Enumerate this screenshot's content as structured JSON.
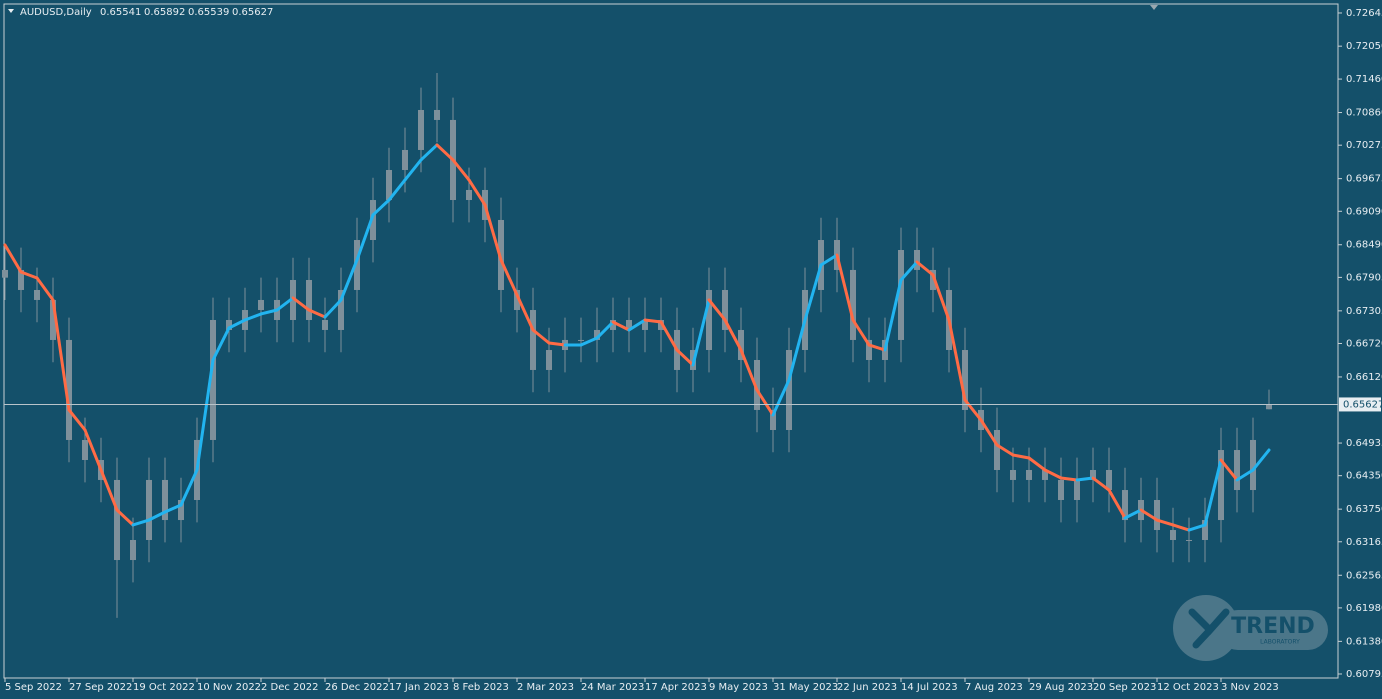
{
  "chart_data": {
    "type": "candlestick",
    "symbol": "AUDUSD,Daily",
    "categories": [
      "5 Sep 2022",
      null,
      null,
      null,
      "27 Sep 2022",
      null,
      null,
      null,
      "19 Oct 2022",
      null,
      null,
      null,
      "10 Nov 2022",
      null,
      null,
      null,
      "2 Dec 2022",
      null,
      null,
      null,
      "26 Dec 2022",
      null,
      null,
      null,
      "17 Jan 2023",
      null,
      null,
      null,
      "8 Feb 2023",
      null,
      null,
      null,
      "2 Mar 2023",
      null,
      null,
      null,
      "24 Mar 2023",
      null,
      null,
      null,
      "17 Apr 2023",
      null,
      null,
      null,
      "9 May 2023",
      null,
      null,
      null,
      "31 May 2023",
      null,
      null,
      null,
      "22 Jun 2023",
      null,
      null,
      null,
      "14 Jul 2023",
      null,
      null,
      null,
      "7 Aug 2023",
      null,
      null,
      null,
      "29 Aug 2023",
      null,
      null,
      null,
      "20 Sep 2023",
      null,
      null,
      null,
      "12 Oct 2023",
      null,
      null,
      null,
      "3 Nov 2023",
      null,
      null,
      null
    ],
    "open": [
      0.679,
      0.68038,
      0.67679,
      0.675,
      0.66783,
      0.6499,
      0.64631,
      0.64273,
      0.62838,
      0.63197,
      0.64273,
      0.63555,
      0.63914,
      0.6499,
      0.67141,
      0.66962,
      0.6732,
      0.675,
      0.67141,
      0.67858,
      0.67141,
      0.66962,
      0.67679,
      0.68575,
      0.69292,
      0.6983,
      0.70189,
      0.70906,
      0.70727,
      0.69292,
      0.69472,
      0.68934,
      0.67679,
      0.6732,
      0.66245,
      0.66603,
      0.66783,
      0.66783,
      0.66962,
      0.67141,
      0.66962,
      0.67141,
      0.66962,
      0.66245,
      0.66603,
      0.67679,
      0.66962,
      0.66424,
      0.65528,
      0.65169,
      0.66603,
      0.67679,
      0.68575,
      0.68038,
      0.66783,
      0.66424,
      0.66783,
      0.68396,
      0.68038,
      0.67679,
      0.66603,
      0.65528,
      0.65169,
      0.64452,
      0.64273,
      0.64452,
      0.64273,
      0.63914,
      0.64273,
      0.64452,
      0.64093,
      0.63555,
      0.63914,
      0.63376,
      0.63197,
      0.63197,
      0.63555,
      0.6481,
      0.64093,
      0.65541
    ],
    "high": [
      0.68438,
      0.68438,
      0.68079,
      0.679,
      0.67183,
      0.6539,
      0.65031,
      0.64673,
      0.63597,
      0.64673,
      0.64673,
      0.64314,
      0.6539,
      0.67541,
      0.67541,
      0.6772,
      0.679,
      0.679,
      0.68258,
      0.68258,
      0.67541,
      0.68079,
      0.68975,
      0.69692,
      0.7023,
      0.70589,
      0.71306,
      0.7157,
      0.71127,
      0.69872,
      0.69872,
      0.69334,
      0.68079,
      0.6772,
      0.67003,
      0.67183,
      0.67183,
      0.67362,
      0.67541,
      0.67541,
      0.67541,
      0.67541,
      0.67362,
      0.67003,
      0.68079,
      0.68079,
      0.67362,
      0.66824,
      0.65928,
      0.67003,
      0.68079,
      0.68975,
      0.68975,
      0.68438,
      0.67183,
      0.67183,
      0.68796,
      0.68796,
      0.68438,
      0.68079,
      0.67003,
      0.65928,
      0.65569,
      0.64852,
      0.64852,
      0.64852,
      0.64673,
      0.64673,
      0.64852,
      0.64852,
      0.64493,
      0.64314,
      0.64314,
      0.63776,
      0.63597,
      0.63955,
      0.6521,
      0.6521,
      0.6539,
      0.65892
    ],
    "low": [
      0.675,
      0.67279,
      0.671,
      0.66383,
      0.6459,
      0.64231,
      0.63873,
      0.618,
      0.62438,
      0.62797,
      0.63155,
      0.63155,
      0.63514,
      0.6459,
      0.66562,
      0.66562,
      0.6692,
      0.66741,
      0.66741,
      0.66741,
      0.66562,
      0.66562,
      0.67279,
      0.68175,
      0.68892,
      0.6943,
      0.69789,
      0.70327,
      0.68892,
      0.68892,
      0.68534,
      0.67279,
      0.6692,
      0.65845,
      0.65845,
      0.66203,
      0.66383,
      0.66383,
      0.66562,
      0.66562,
      0.66562,
      0.66562,
      0.65845,
      0.65845,
      0.66203,
      0.66562,
      0.66024,
      0.65128,
      0.64769,
      0.64769,
      0.66203,
      0.67279,
      0.67638,
      0.66383,
      0.66024,
      0.66024,
      0.66383,
      0.67638,
      0.67279,
      0.66203,
      0.65128,
      0.64769,
      0.64052,
      0.63873,
      0.63873,
      0.63873,
      0.63514,
      0.63514,
      0.63873,
      0.63693,
      0.63155,
      0.63155,
      0.62976,
      0.62797,
      0.62797,
      0.62797,
      0.63155,
      0.63693,
      0.63693,
      0.65539
    ],
    "close": [
      0.68038,
      0.67679,
      0.675,
      0.66783,
      0.6499,
      0.64631,
      0.64273,
      0.62838,
      0.63197,
      0.64273,
      0.63555,
      0.63914,
      0.6499,
      0.67141,
      0.66962,
      0.6732,
      0.675,
      0.67141,
      0.67858,
      0.67141,
      0.66962,
      0.67679,
      0.68575,
      0.69292,
      0.6983,
      0.70189,
      0.70906,
      0.70727,
      0.69292,
      0.69472,
      0.68934,
      0.67679,
      0.6732,
      0.66245,
      0.66603,
      0.66783,
      0.66783,
      0.66962,
      0.67141,
      0.66962,
      0.67141,
      0.66962,
      0.66245,
      0.66603,
      0.67679,
      0.66962,
      0.66424,
      0.65528,
      0.65169,
      0.66603,
      0.67679,
      0.68575,
      0.68038,
      0.66783,
      0.66424,
      0.66783,
      0.68396,
      0.68038,
      0.67679,
      0.66603,
      0.65528,
      0.65169,
      0.64452,
      0.64273,
      0.64452,
      0.64273,
      0.63914,
      0.64273,
      0.64452,
      0.64093,
      0.63555,
      0.63914,
      0.63376,
      0.63197,
      0.63197,
      0.63555,
      0.6481,
      0.64093,
      0.6499,
      0.65627
    ],
    "candle_color": "#7e909b",
    "ma": {
      "up_color": "#22b4f0",
      "down_color": "#ff6b45",
      "values": [
        0.68486,
        0.68002,
        0.67894,
        0.675,
        0.65528,
        0.65169,
        0.64452,
        0.63735,
        0.63466,
        0.63555,
        0.63699,
        0.63824,
        0.64452,
        0.66424,
        0.66998,
        0.67141,
        0.67249,
        0.6732,
        0.67536,
        0.6732,
        0.67195,
        0.675,
        0.68217,
        0.69024,
        0.69292,
        0.69651,
        0.7001,
        0.70279,
        0.7001,
        0.69651,
        0.69203,
        0.68217,
        0.67589,
        0.66962,
        0.66729,
        0.66693,
        0.66693,
        0.66818,
        0.67105,
        0.66962,
        0.67141,
        0.67105,
        0.66603,
        0.66334,
        0.675,
        0.67141,
        0.66603,
        0.65886,
        0.65438,
        0.66065,
        0.67141,
        0.68127,
        0.68306,
        0.67141,
        0.66693,
        0.66603,
        0.67858,
        0.68181,
        0.67948,
        0.67141,
        0.65707,
        0.65348,
        0.649,
        0.64721,
        0.64667,
        0.64452,
        0.64308,
        0.64273,
        0.64308,
        0.64093,
        0.63591,
        0.63735,
        0.63555,
        0.63466,
        0.63376,
        0.63466,
        0.64631,
        0.64273,
        0.64452,
        0.6481
      ]
    },
    "current_price": 0.65627,
    "ylim": [
      0.60723,
      0.72788
    ],
    "yticks": [
      0.72645,
      {
        "value": 0.7205,
        "label": "0.72050"
      },
      {
        "value": 0.7146,
        "label": "0.71460"
      },
      {
        "value": 0.7086,
        "label": "0.70860"
      },
      0.70275,
      0.69675,
      {
        "value": 0.6909,
        "label": "0.69090"
      },
      {
        "value": 0.6849,
        "label": "0.68490"
      },
      0.67905,
      0.67305,
      {
        "value": 0.6672,
        "label": "0.66720"
      },
      {
        "value": 0.6612,
        "label": "0.66120"
      },
      0.64935,
      {
        "value": 0.6435,
        "label": "0.64350"
      },
      {
        "value": 0.6375,
        "label": "0.63750"
      },
      0.63165,
      0.62565,
      {
        "value": 0.6198,
        "label": "0.61980"
      },
      {
        "value": 0.6138,
        "label": "0.61380"
      },
      0.60795
    ],
    "watermark": [
      "TREND",
      "LABORATORY"
    ]
  }
}
